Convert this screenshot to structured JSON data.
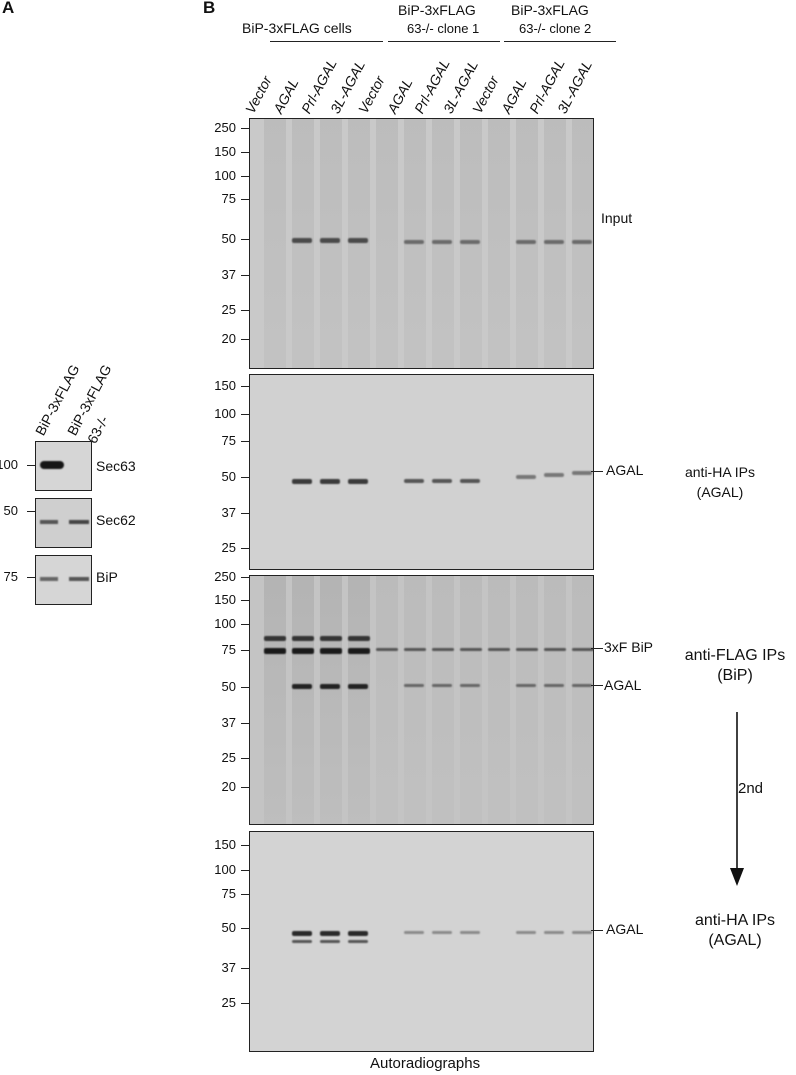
{
  "panel_a": {
    "letter": "A",
    "lanes": [
      "BiP-3xFLAG",
      "BiP-3xFLAG"
    ],
    "lane2_sub": "63-/-",
    "blots": [
      {
        "label": "Sec63",
        "mw": "100"
      },
      {
        "label": "Sec62",
        "mw": "50"
      },
      {
        "label": "BiP",
        "mw": "75"
      }
    ]
  },
  "panel_b": {
    "letter": "B",
    "groups": [
      {
        "line1": "BiP-3xFLAG cells",
        "line2": ""
      },
      {
        "line1": "BiP-3xFLAG",
        "line2": "63-/- clone 1"
      },
      {
        "line1": "BiP-3xFLAG",
        "line2": "63-/- clone 2"
      }
    ],
    "lanes": [
      "Vector",
      "AGAL",
      "Prl-AGAL",
      "3L-AGAL",
      "Vector",
      "AGAL",
      "Prl-AGAL",
      "3L-AGAL",
      "Vector",
      "AGAL",
      "Prl-AGAL",
      "3L-AGAL"
    ],
    "gels": [
      {
        "name": "input",
        "mw": [
          "250",
          "150",
          "100",
          "75",
          "50",
          "37",
          "25",
          "20"
        ],
        "right_label": "Input"
      },
      {
        "name": "anti-ha-1",
        "mw": [
          "150",
          "100",
          "75",
          "50",
          "37",
          "25"
        ],
        "band_labels": [
          "AGAL"
        ],
        "side_line1": "anti-HA IPs",
        "side_line2": "(AGAL)"
      },
      {
        "name": "anti-flag",
        "mw": [
          "250",
          "150",
          "100",
          "75",
          "50",
          "37",
          "25",
          "20"
        ],
        "band_labels": [
          "3xF BiP",
          "AGAL"
        ],
        "side_line1": "anti-FLAG IPs",
        "side_line2": "(BiP)"
      },
      {
        "name": "anti-ha-2",
        "mw": [
          "150",
          "100",
          "75",
          "50",
          "37",
          "25"
        ],
        "band_labels": [
          "AGAL"
        ],
        "side_line1": "anti-HA IPs",
        "side_line2": "(AGAL)"
      }
    ],
    "arrow_label": "2nd",
    "footer": "Autoradiographs"
  }
}
